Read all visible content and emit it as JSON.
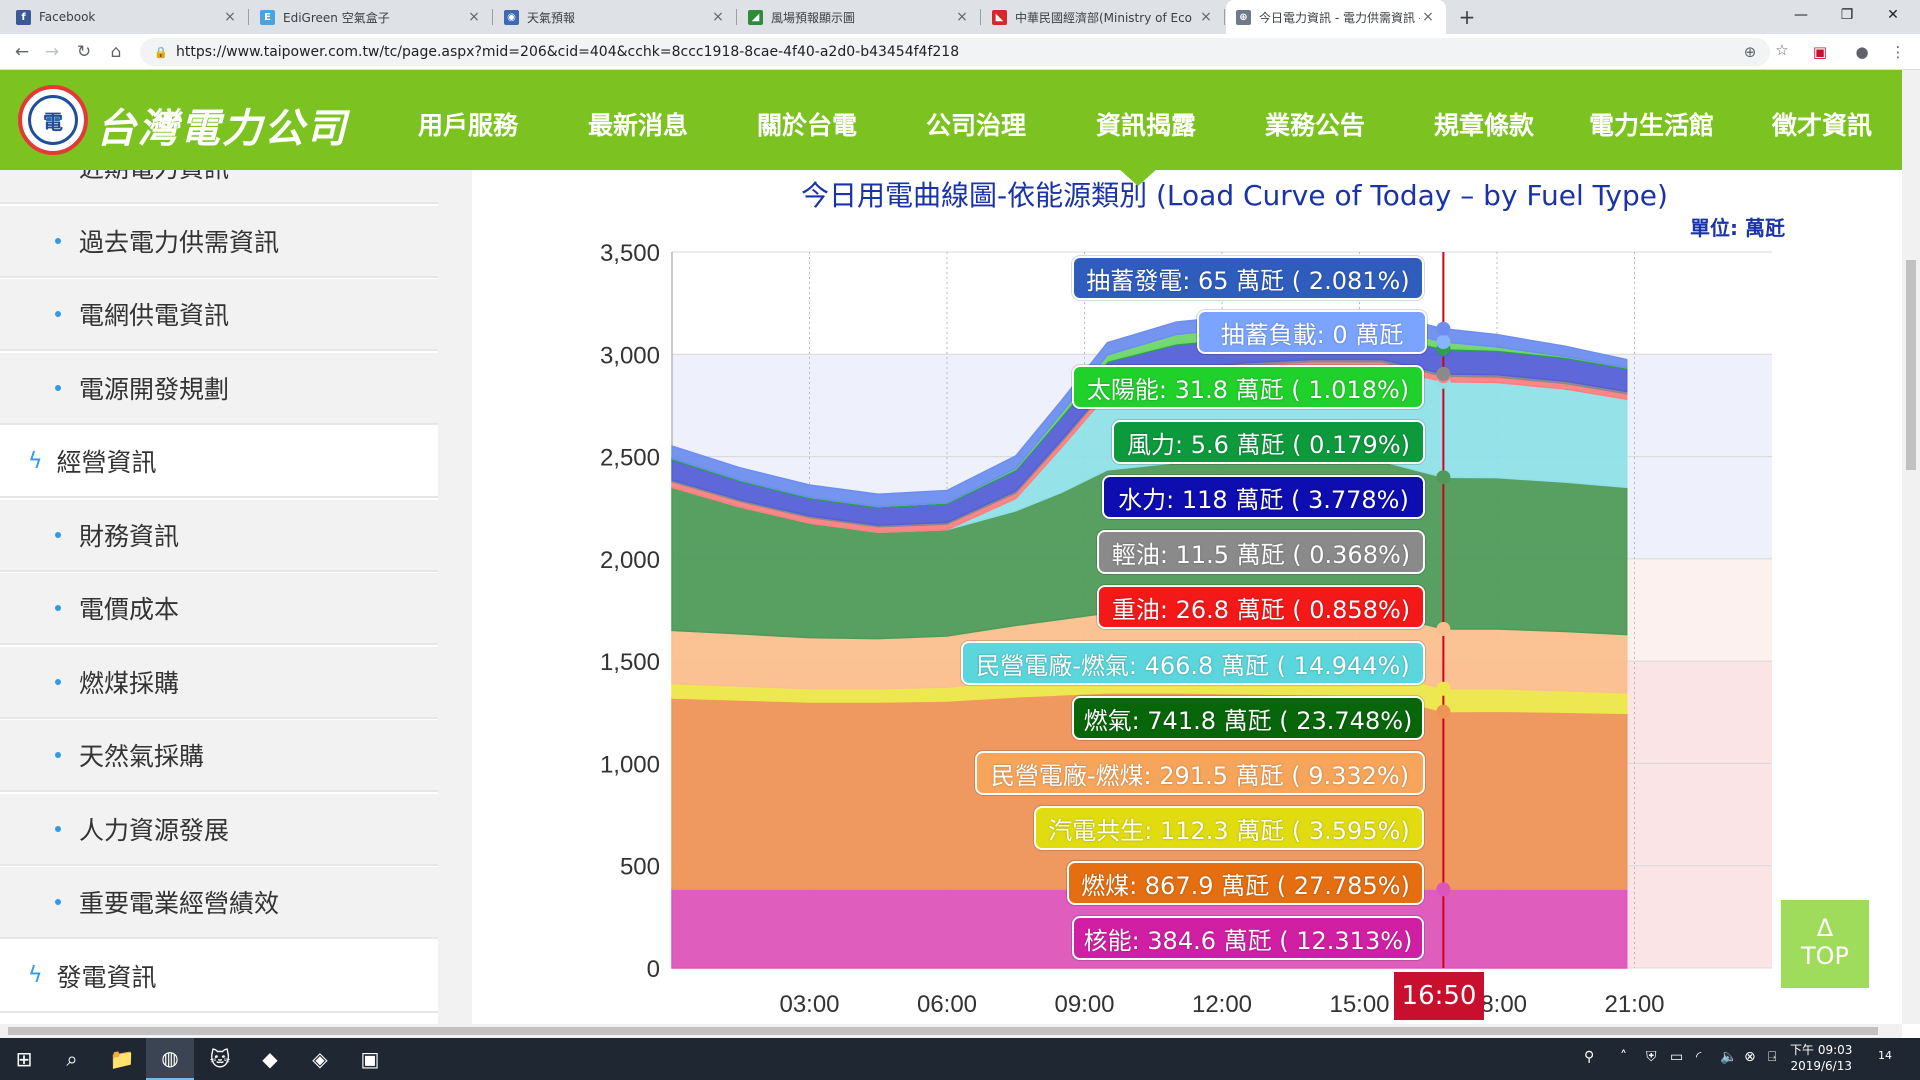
{
  "browser": {
    "tabs": [
      {
        "title": "Facebook",
        "favicon_color": "#3b5998",
        "favicon_glyph": "f"
      },
      {
        "title": "EdiGreen 空氣盒子",
        "favicon_color": "#4aa3df",
        "favicon_glyph": "E"
      },
      {
        "title": "天氣預報",
        "favicon_color": "#3c6ab5",
        "favicon_glyph": "◉"
      },
      {
        "title": "風場預報顯示圖",
        "favicon_color": "#2e8b3a",
        "favicon_glyph": "◢"
      },
      {
        "title": "中華民國經濟部(Ministry of Eco",
        "favicon_color": "#d62828",
        "favicon_glyph": "◣"
      },
      {
        "title": "今日電力資訊 - 電力供需資訊 - 臺",
        "favicon_color": "#6f7b8a",
        "favicon_glyph": "⊕"
      }
    ],
    "url": "https://www.taipower.com.tw/tc/page.aspx?mid=206&cid=404&cchk=8ccc1918-8cae-4f40-a2d0-b43454f4f218"
  },
  "site": {
    "brand": "台灣電力公司",
    "logo_glyph": "電",
    "menu": [
      "用戶服務",
      "最新消息",
      "關於台電",
      "公司治理",
      "資訊揭露",
      "業務公告",
      "規章條款",
      "電力生活館",
      "徵才資訊"
    ]
  },
  "sidebar": {
    "items": [
      {
        "label": "近期電力資訊",
        "type": "sub"
      },
      {
        "label": "過去電力供需資訊",
        "type": "sub"
      },
      {
        "label": "電網供電資訊",
        "type": "sub"
      },
      {
        "label": "電源開發規劃",
        "type": "sub"
      },
      {
        "label": "經營資訊",
        "type": "main"
      },
      {
        "label": "財務資訊",
        "type": "sub"
      },
      {
        "label": "電價成本",
        "type": "sub"
      },
      {
        "label": "燃煤採購",
        "type": "sub"
      },
      {
        "label": "天然氣採購",
        "type": "sub"
      },
      {
        "label": "人力資源發展",
        "type": "sub"
      },
      {
        "label": "重要電業經營績效",
        "type": "sub"
      },
      {
        "label": "發電資訊",
        "type": "main"
      }
    ]
  },
  "chart": {
    "title": "今日用電曲線圖-依能源類別 (Load Curve of Today – by Fuel Type)",
    "unit": "單位: 萬瓩",
    "current_time": "16:50",
    "top_button": {
      "arrow": "Δ",
      "label": "TOP"
    }
  },
  "chart_data": {
    "type": "area",
    "stacked": true,
    "ylim": [
      0,
      3500
    ],
    "yticks": [
      0,
      500,
      1000,
      1500,
      2000,
      2500,
      3000,
      3500
    ],
    "ytick_labels": [
      "0",
      "500",
      "1,000",
      "1,500",
      "2,000",
      "2,500",
      "3,000",
      "3,500"
    ],
    "xlim": [
      0,
      24
    ],
    "xticks": [
      3,
      6,
      9,
      12,
      15,
      18,
      21
    ],
    "xtick_labels": [
      "03:00",
      "06:00",
      "09:00",
      "12:00",
      "15:00",
      "18:00",
      "21:00"
    ],
    "x": [
      0,
      1.5,
      3,
      4.5,
      6,
      7.5,
      8.5,
      9.5,
      11,
      12.5,
      14,
      15.5,
      16.83,
      18,
      19.5,
      20.83
    ],
    "cursor_x": 16.83,
    "series": [
      {
        "name": "核能",
        "color": "#dd55b9",
        "values": [
          385,
          385,
          385,
          385,
          385,
          385,
          385,
          385,
          385,
          385,
          385,
          385,
          385,
          385,
          385,
          385
        ]
      },
      {
        "name": "燃煤",
        "color": "#ee9457",
        "values": [
          935,
          925,
          915,
          915,
          920,
          940,
          950,
          960,
          960,
          955,
          950,
          945,
          868,
          870,
          865,
          860
        ]
      },
      {
        "name": "汽電共生",
        "color": "#ece84a",
        "values": [
          70,
          68,
          65,
          65,
          68,
          80,
          90,
          100,
          105,
          108,
          110,
          112,
          112,
          110,
          105,
          100
        ]
      },
      {
        "name": "民營電廠-燃煤",
        "color": "#fbbf8e",
        "values": [
          260,
          255,
          250,
          245,
          250,
          270,
          280,
          290,
          290,
          292,
          292,
          292,
          292,
          292,
          290,
          285
        ]
      },
      {
        "name": "燃氣",
        "color": "#4f9a5a",
        "values": [
          700,
          620,
          560,
          520,
          520,
          560,
          620,
          700,
          730,
          740,
          745,
          742,
          742,
          740,
          730,
          720
        ]
      },
      {
        "name": "民營電廠-燃氣",
        "color": "#90e0e8",
        "values": [
          0,
          0,
          0,
          0,
          0,
          60,
          220,
          370,
          420,
          440,
          455,
          460,
          467,
          465,
          455,
          430
        ]
      },
      {
        "name": "重油",
        "color": "#ff7f7f",
        "values": [
          27,
          27,
          27,
          27,
          27,
          27,
          27,
          27,
          27,
          27,
          27,
          27,
          27,
          27,
          27,
          27
        ]
      },
      {
        "name": "輕油",
        "color": "#8a8a8a",
        "values": [
          8,
          8,
          8,
          8,
          8,
          10,
          11,
          11,
          11,
          11,
          11,
          11,
          11,
          11,
          11,
          11
        ]
      },
      {
        "name": "水力",
        "color": "#5560d6",
        "values": [
          100,
          90,
          85,
          85,
          90,
          100,
          110,
          118,
          118,
          118,
          118,
          118,
          118,
          115,
          112,
          110
        ]
      },
      {
        "name": "風力",
        "color": "#2aa14b",
        "values": [
          6,
          6,
          6,
          6,
          6,
          6,
          6,
          6,
          6,
          6,
          6,
          6,
          6,
          6,
          6,
          6
        ]
      },
      {
        "name": "太陽能",
        "color": "#6fd66a",
        "values": [
          0,
          0,
          0,
          0,
          0,
          5,
          15,
          30,
          45,
          50,
          45,
          38,
          32,
          15,
          3,
          0
        ]
      },
      {
        "name": "抽蓄負載",
        "color": "#88b3ff",
        "values": [
          0,
          0,
          0,
          0,
          0,
          0,
          0,
          0,
          0,
          0,
          0,
          0,
          0,
          0,
          0,
          0
        ]
      },
      {
        "name": "抽蓄發電",
        "color": "#6d8eee",
        "values": [
          60,
          60,
          60,
          60,
          60,
          60,
          60,
          60,
          60,
          60,
          60,
          60,
          65,
          60,
          50,
          40
        ]
      }
    ],
    "tooltip": [
      {
        "text": "抽蓄發電: 65 萬瓩 ( 2.081%)",
        "color": "#2f5dbe"
      },
      {
        "text": "抽蓄負載: 0 萬瓩",
        "color": "#7aa4ff"
      },
      {
        "text": "太陽能: 31.8 萬瓩 ( 1.018%)",
        "color": "#1fd12a"
      },
      {
        "text": "風力: 5.6 萬瓩 ( 0.179%)",
        "color": "#0c9a3d"
      },
      {
        "text": "水力: 118 萬瓩 ( 3.778%)",
        "color": "#0d0db0"
      },
      {
        "text": "輕油: 11.5 萬瓩 ( 0.368%)",
        "color": "#8a8a8a"
      },
      {
        "text": "重油: 26.8 萬瓩 ( 0.858%)",
        "color": "#f41818"
      },
      {
        "text": "民營電廠-燃氣: 466.8 萬瓩 ( 14.944%)",
        "color": "#5ad6dc"
      },
      {
        "text": "燃氣: 741.8 萬瓩 ( 23.748%)",
        "color": "#076609"
      },
      {
        "text": "民營電廠-燃煤: 291.5 萬瓩 ( 9.332%)",
        "color": "#f6a55a"
      },
      {
        "text": "汽電共生: 112.3 萬瓩 ( 3.595%)",
        "color": "#e0dc10"
      },
      {
        "text": "燃煤: 867.9 萬瓩 ( 27.785%)",
        "color": "#e56e10"
      },
      {
        "text": "核能: 384.6 萬瓩 ( 12.313%)",
        "color": "#d11fa3"
      }
    ]
  },
  "taskbar": {
    "apps": [
      "⊞",
      "⌕",
      "📁",
      "◍",
      "🐱",
      "◆",
      "◈",
      "▣"
    ],
    "time": "下午 09:03",
    "date": "2019/6/13",
    "notification_count": "14"
  }
}
